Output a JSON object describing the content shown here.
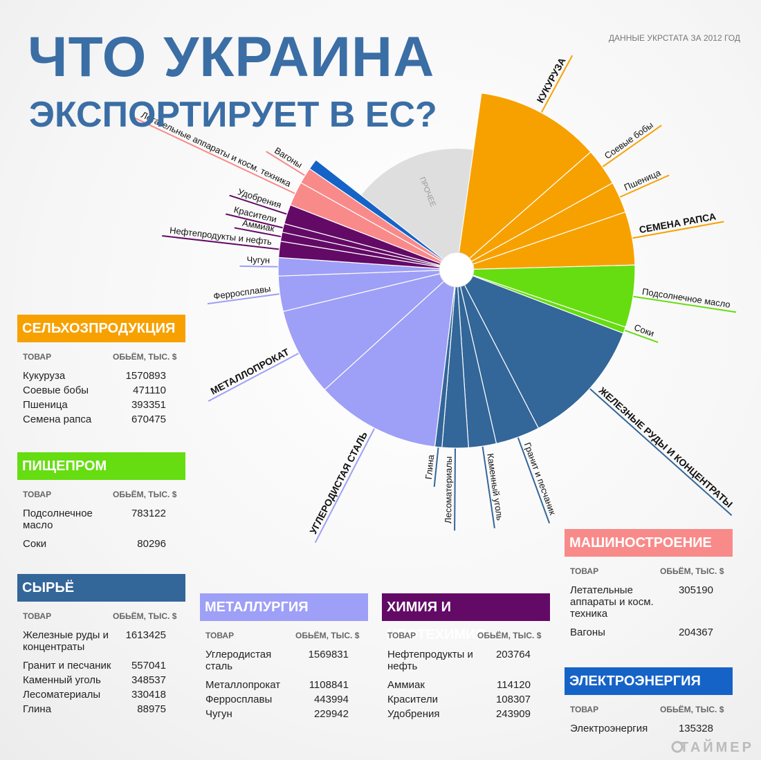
{
  "header": {
    "title_line1": "ЧТО УКРАИНА",
    "title_line2": "ЭКСПОРТИРУЕТ В ЕС?",
    "source": "ДАННЫЕ УКРСТАТА ЗА 2012 ГОД"
  },
  "chart_data": {
    "type": "polar-area",
    "other_label": "ПРОЧЕЕ",
    "columns": [
      "ТОВАР",
      "ОБЬЁМ, ТЫС. $"
    ],
    "groups": [
      {
        "name": "СЕЛЬХОЗПРОДУКЦИЯ",
        "color": "#f7a100",
        "items": [
          {
            "label": "Кукуруза",
            "chart_label": "КУКУРУЗА",
            "value": 1570893
          },
          {
            "label": "Соевые бобы",
            "value": 471110
          },
          {
            "label": "Пшеница",
            "value": 393351
          },
          {
            "label": "Семена рапса",
            "chart_label": "СЕМЕНА РАПСА",
            "value": 670475
          }
        ]
      },
      {
        "name": "ПИЩЕПРОМ",
        "color": "#66dd11",
        "items": [
          {
            "label": "Подсолнечное масло",
            "value": 783122
          },
          {
            "label": "Соки",
            "value": 80296
          }
        ]
      },
      {
        "name": "СЫРЬЁ",
        "color": "#336699",
        "items": [
          {
            "label": "Железные руды и концентраты",
            "chart_label": "ЖЕЛЕЗНЫЕ РУДЫ И КОНЦЕНТРАТЫ",
            "value": 1613425
          },
          {
            "label": "Гранит и песчаник",
            "value": 557041
          },
          {
            "label": "Каменный уголь",
            "value": 348537
          },
          {
            "label": "Лесоматериалы",
            "value": 330418
          },
          {
            "label": "Глина",
            "value": 88975
          }
        ]
      },
      {
        "name": "МЕТАЛЛУРГИЯ",
        "color": "#9e9ff6",
        "items": [
          {
            "label": "Углеродистая сталь",
            "chart_label": "УГЛЕРОДИСТАЯ СТАЛЬ",
            "value": 1569831
          },
          {
            "label": "Металлопрокат",
            "chart_label": "МЕТАЛЛОПРОКАТ",
            "value": 1108841
          },
          {
            "label": "Ферросплавы",
            "value": 443994
          },
          {
            "label": "Чугун",
            "value": 229942
          }
        ]
      },
      {
        "name": "ХИМИЯ И НЕФТЕХИМИЯ",
        "color": "#630a66",
        "items": [
          {
            "label": "Нефтепродукты и нефть",
            "value": 203764
          },
          {
            "label": "Аммиак",
            "value": 114120
          },
          {
            "label": "Красители",
            "value": 108307
          },
          {
            "label": "Удобрения",
            "value": 243909
          }
        ]
      },
      {
        "name": "МАШИНОСТРОЕНИЕ",
        "color": "#f98a8a",
        "items": [
          {
            "label": "Летательные аппараты и косм. техника",
            "value": 305190
          },
          {
            "label": "Вагоны",
            "value": 204367
          }
        ]
      },
      {
        "name": "ЭЛЕКТРОЭНЕРГИЯ",
        "color": "#1663c7",
        "items": [
          {
            "label": "Электроэнергия",
            "chart_label": null,
            "value": 135328
          }
        ]
      }
    ]
  },
  "footer": {
    "brand": "ТАЙМЕР"
  }
}
